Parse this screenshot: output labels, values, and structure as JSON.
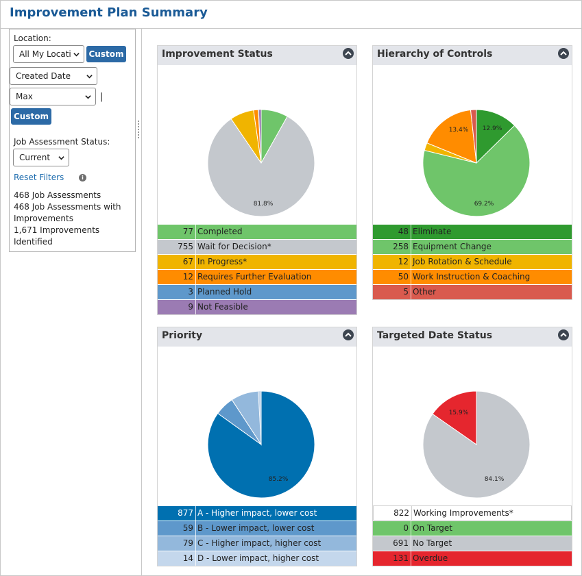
{
  "page": {
    "title": "Improvement Plan Summary"
  },
  "filters": {
    "location_label": "Location:",
    "location_value": "All My Locati",
    "custom_label": "Custom",
    "date_field_value": "Created Date",
    "date_range_value": "Max",
    "pipe": "|",
    "custom2_label": "Custom",
    "assessment_status_label": "Job Assessment Status:",
    "assessment_status_value": "Current",
    "reset_label": "Reset Filters",
    "info_glyph": "i",
    "stats": [
      "468 Job Assessments",
      "468 Job Assessments with",
      "Improvements",
      "1,671 Improvements",
      "Identified"
    ]
  },
  "cards": [
    {
      "title": "Improvement Status",
      "icon": "collapse-up-icon",
      "pie_labels": [
        "81.8%"
      ],
      "legend": [
        {
          "count": "77",
          "label": "Completed",
          "color": "#6fc56a",
          "text": "#222"
        },
        {
          "count": "755",
          "label": "Wait for Decision*",
          "color": "#c4c8cd",
          "text": "#222"
        },
        {
          "count": "67",
          "label": "In Progress*",
          "color": "#f0b400",
          "text": "#222"
        },
        {
          "count": "12",
          "label": "Requires Further Evaluation",
          "color": "#ff8c00",
          "text": "#222"
        },
        {
          "count": "3",
          "label": "Planned Hold",
          "color": "#5e98cb",
          "text": "#222"
        },
        {
          "count": "9",
          "label": "Not Feasible",
          "color": "#9b7bb3",
          "text": "#222"
        }
      ]
    },
    {
      "title": "Hierarchy of Controls",
      "icon": "collapse-up-icon",
      "pie_labels": [
        "12.9%",
        "13.4%",
        "69.2%"
      ],
      "legend": [
        {
          "count": "48",
          "label": "Eliminate",
          "color": "#2f9a2f",
          "text": "#222"
        },
        {
          "count": "258",
          "label": "Equipment Change",
          "color": "#6fc56a",
          "text": "#222"
        },
        {
          "count": "12",
          "label": "Job Rotation & Schedule",
          "color": "#f0b400",
          "text": "#222"
        },
        {
          "count": "50",
          "label": "Work Instruction & Coaching",
          "color": "#ff8c00",
          "text": "#222"
        },
        {
          "count": "5",
          "label": "Other",
          "color": "#d95a4e",
          "text": "#222"
        }
      ]
    },
    {
      "title": "Priority",
      "icon": "collapse-up-icon",
      "pie_labels": [
        "85.2%"
      ],
      "legend": [
        {
          "count": "877",
          "label": "A - Higher impact, lower cost",
          "color": "#0070b0",
          "text": "#ffffff"
        },
        {
          "count": "59",
          "label": "B - Lower impact, lower cost",
          "color": "#5e98cb",
          "text": "#222"
        },
        {
          "count": "79",
          "label": "C - Higher impact, higher cost",
          "color": "#93b8dc",
          "text": "#222"
        },
        {
          "count": "14",
          "label": "D - Lower impact, higher cost",
          "color": "#c4d7ec",
          "text": "#222"
        }
      ]
    },
    {
      "title": "Targeted Date Status",
      "icon": "collapse-up-icon",
      "pie_labels": [
        "15.9%",
        "84.1%"
      ],
      "legend": [
        {
          "count": "822",
          "label": "Working Improvements*",
          "color": "#ffffff",
          "text": "#222"
        },
        {
          "count": "0",
          "label": "On Target",
          "color": "#6fc56a",
          "text": "#222"
        },
        {
          "count": "691",
          "label": "No Target",
          "color": "#c4c8cd",
          "text": "#222"
        },
        {
          "count": "131",
          "label": "Overdue",
          "color": "#e5262e",
          "text": "#222"
        }
      ]
    }
  ]
}
